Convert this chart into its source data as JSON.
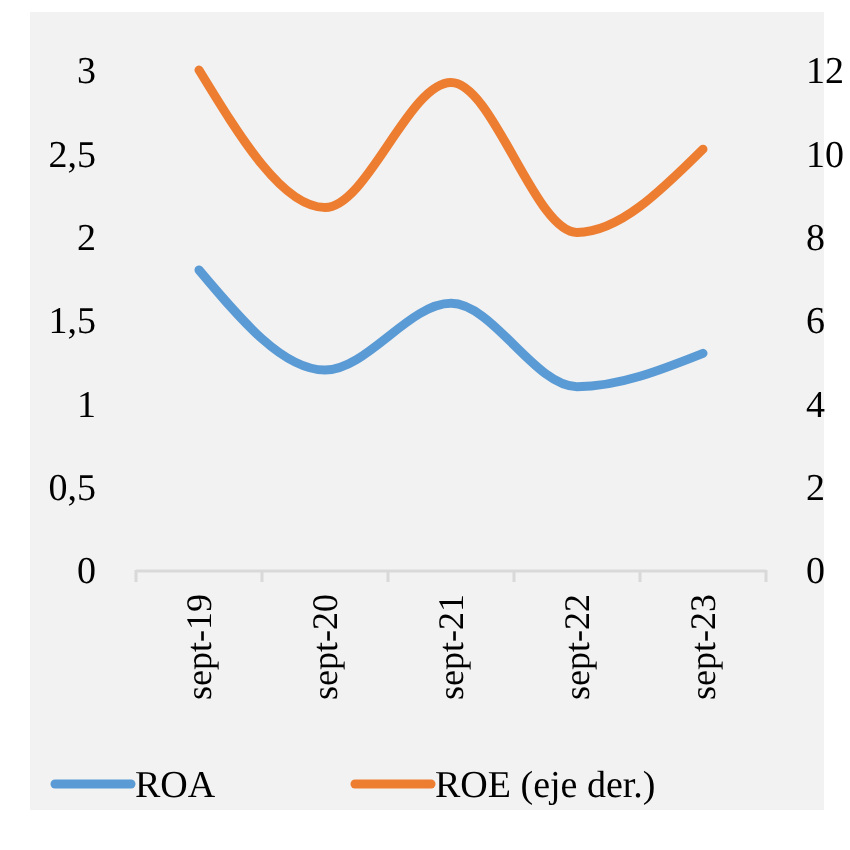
{
  "chart_data": {
    "type": "line",
    "categories": [
      "sept-19",
      "sept-20",
      "sept-21",
      "sept-22",
      "sept-23"
    ],
    "series": [
      {
        "name": "ROA",
        "color": "#5b9bd5",
        "values": [
          1.8,
          1.2,
          1.6,
          1.1,
          1.3
        ]
      },
      {
        "name": "ROE (eje der.)",
        "color": "#ed7d31",
        "axis": "y2",
        "values": [
          12,
          8.7,
          11.7,
          8.1,
          10.1
        ]
      }
    ],
    "ylim": [
      0,
      3
    ],
    "yticks": [
      0,
      {
        "value": 0.5,
        "label": "0,5"
      },
      1,
      {
        "value": 1.5,
        "label": "1,5"
      },
      2,
      {
        "value": 2.5,
        "label": "2,5"
      },
      3
    ],
    "y2lim": [
      0,
      12
    ],
    "y2ticks": [
      0,
      2,
      4,
      6,
      8,
      10,
      12
    ],
    "grid": false,
    "legend": "bottom",
    "marker": "none",
    "line_style": "solid"
  }
}
